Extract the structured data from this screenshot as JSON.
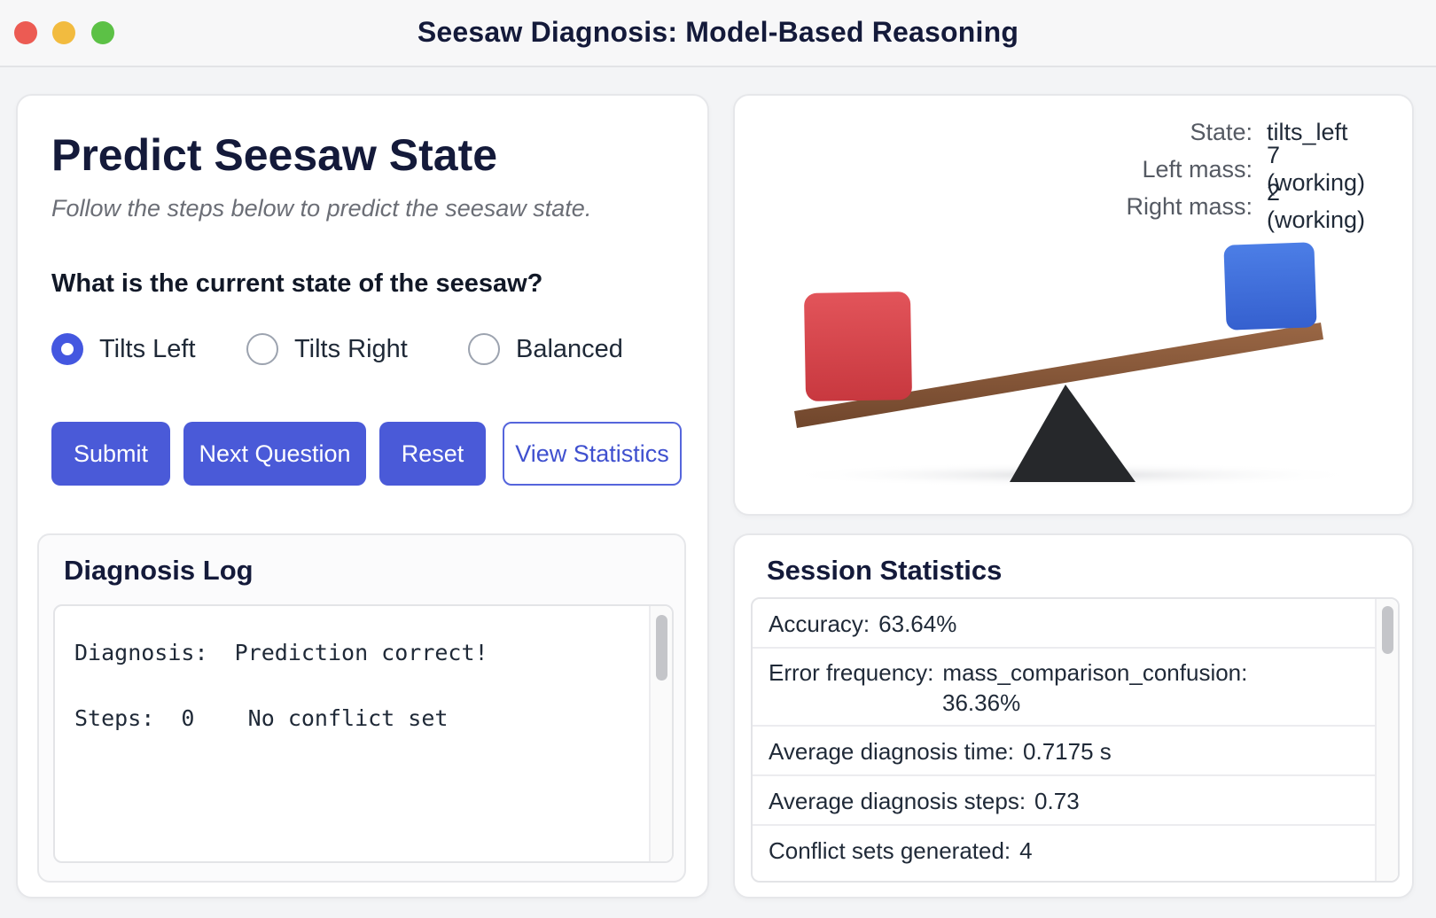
{
  "window": {
    "title": "Seesaw Diagnosis: Model-Based Reasoning"
  },
  "predict": {
    "title": "Predict Seesaw State",
    "subtitle": "Follow the steps below to predict the seesaw state.",
    "question": "What is the current state of the seesaw?",
    "options": [
      {
        "label": "Tilts Left",
        "checked": true
      },
      {
        "label": "Tilts Right",
        "checked": false
      },
      {
        "label": "Balanced",
        "checked": false
      }
    ],
    "buttons": {
      "submit": "Submit",
      "next": "Next Question",
      "reset": "Reset",
      "stats": "View Statistics"
    }
  },
  "log": {
    "title": "Diagnosis Log",
    "line1": "Diagnosis:  Prediction correct!",
    "line2": "Steps:  0    No conflict set"
  },
  "seesaw": {
    "state_label": "State:",
    "state_value": "tilts_left",
    "left_label": "Left mass:",
    "left_value": "7 (working)",
    "right_label": "Right mass:",
    "right_value": "2 (working)",
    "colors": {
      "left_block": "#d9444a",
      "right_block": "#3f6fdc",
      "beam": "#8a5a3b",
      "fulcrum": "#26282b"
    }
  },
  "stats": {
    "title": "Session Statistics",
    "accuracy_label": "Accuracy:",
    "accuracy_value": "63.64%",
    "error_label": "Error frequency:",
    "error_value": "mass_comparison_confusion:",
    "error_pct": "36.36%",
    "avg_time_label": "Average diagnosis time:",
    "avg_time_value": "0.7175 s",
    "avg_steps_label": "Average diagnosis steps:",
    "avg_steps_value": "0.73",
    "conflict_label": "Conflict sets generated:",
    "conflict_value": "4"
  },
  "theme": {
    "accent": "#4a5ad8"
  }
}
